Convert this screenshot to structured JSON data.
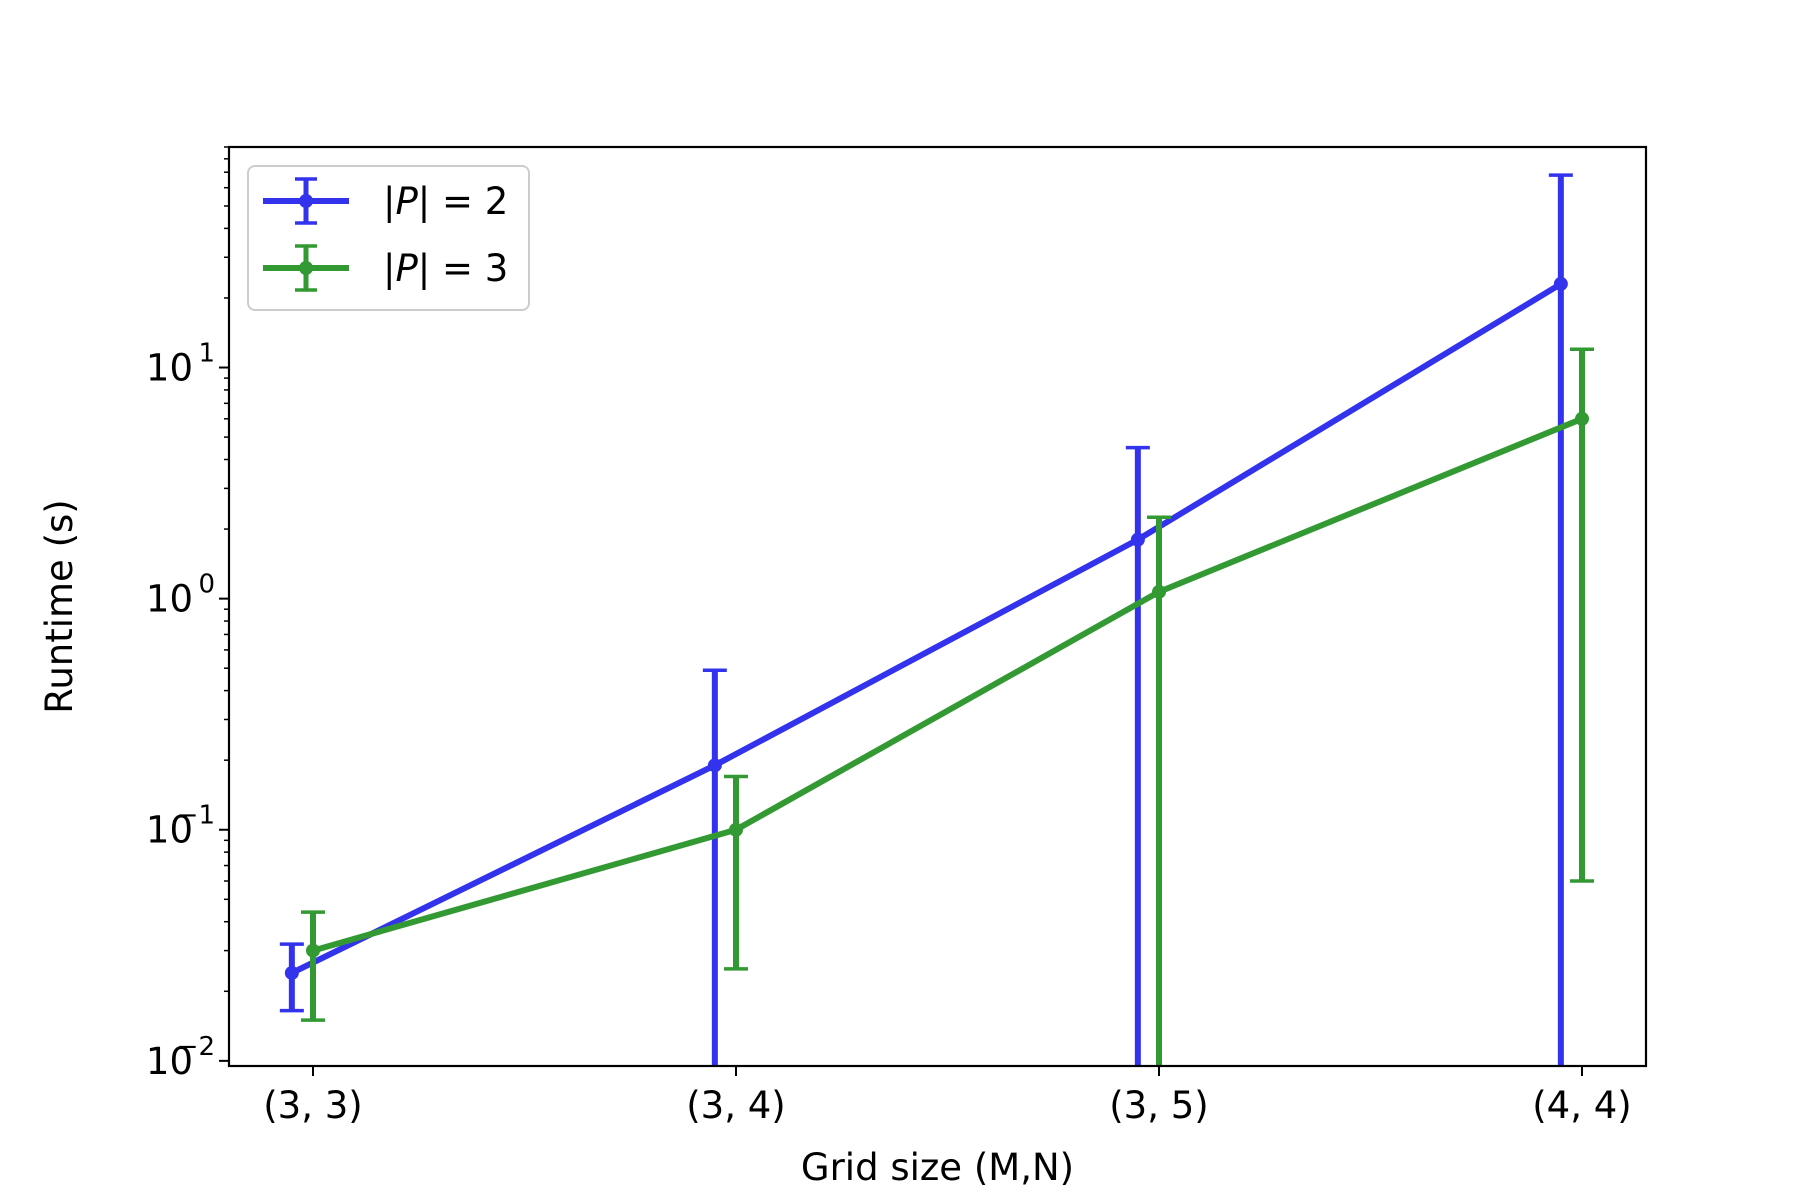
{
  "chart_data": {
    "type": "line",
    "title": "",
    "xlabel": "Grid size (M,N)",
    "ylabel": "Runtime (s)",
    "categories": [
      "(3, 3)",
      "(3, 4)",
      "(3, 5)",
      "(4, 4)"
    ],
    "yscale": "log",
    "ylim": [
      0.0095,
      90
    ],
    "yticks": [
      {
        "value": 0.01,
        "base": "10",
        "exp": "−2"
      },
      {
        "value": 0.1,
        "base": "10",
        "exp": "−1"
      },
      {
        "value": 1,
        "base": "10",
        "exp": "0"
      },
      {
        "value": 10,
        "base": "10",
        "exp": "1"
      }
    ],
    "grid": false,
    "legend_position": "top-left",
    "series": [
      {
        "name": "|P| = 2",
        "legend_var": "P",
        "legend_value": "2",
        "color": "#3333ee",
        "offset": -0.05,
        "values": [
          0.024,
          0.19,
          1.8,
          23
        ],
        "err_low": [
          0.0165,
          0.0001,
          0.0001,
          0.0001
        ],
        "err_high": [
          0.032,
          0.49,
          4.5,
          68
        ]
      },
      {
        "name": "|P| = 3",
        "legend_var": "P",
        "legend_value": "3",
        "color": "#339933",
        "offset": 0.0,
        "values": [
          0.03,
          0.1,
          1.07,
          6.0
        ],
        "err_low": [
          0.015,
          0.025,
          0.0001,
          0.06
        ],
        "err_high": [
          0.044,
          0.17,
          2.25,
          12
        ]
      }
    ]
  }
}
